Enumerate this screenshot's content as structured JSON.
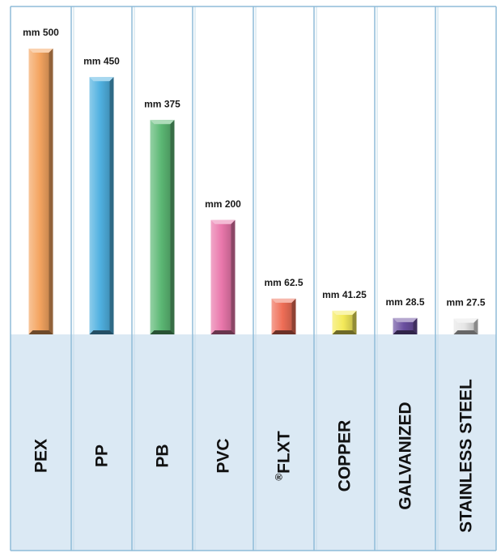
{
  "chart_data": {
    "type": "bar",
    "categories": [
      "PEX",
      "PP",
      "PB",
      "PVC",
      "FLXT",
      "COPPER",
      "GALVANIZED",
      "STAINLESS STEEL"
    ],
    "category_prefix": {
      "FLXT": "®"
    },
    "values": [
      500,
      450,
      375,
      200,
      62.5,
      41.25,
      28.5,
      27.5
    ],
    "value_labels": [
      "mm 500",
      "mm 450",
      "mm 375",
      "mm 200",
      "mm 62.5",
      "mm 41.25",
      "mm 28.5",
      "mm 27.5"
    ],
    "unit": "mm",
    "colors": [
      "#f4a460",
      "#4fb0e0",
      "#5cb874",
      "#e977ab",
      "#ef6e57",
      "#f4ea5a",
      "#6a4f9f",
      "#e6e6e6"
    ],
    "axis_line_color": "#8fbcd8",
    "label_band_color": "#dbe9f4",
    "title": "",
    "xlabel": "",
    "ylabel": "",
    "grid": false,
    "legend": "none"
  }
}
